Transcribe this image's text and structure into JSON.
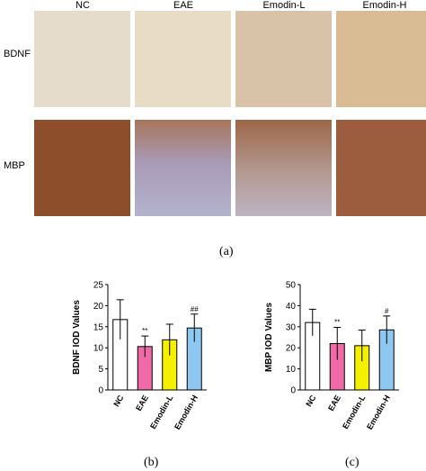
{
  "micrographs": {
    "columns": [
      "NC",
      "EAE",
      "Emodin-L",
      "Emodin-H"
    ],
    "rows": [
      "BDNF",
      "MBP"
    ]
  },
  "captions": {
    "a": "(a)",
    "b": "(b)",
    "c": "(c)"
  },
  "chart_data": [
    {
      "type": "bar",
      "ylabel": "BDNF IOD Values",
      "xlabel": "",
      "ylim": [
        0,
        25
      ],
      "yticks": [
        0,
        5,
        10,
        15,
        20,
        25
      ],
      "categories": [
        "NC",
        "EAE",
        "Emodin-L",
        "Emodin-H"
      ],
      "values": [
        16.7,
        10.3,
        11.9,
        14.7
      ],
      "errors": [
        4.7,
        2.5,
        3.7,
        3.3
      ],
      "annotations": [
        "",
        "**",
        "",
        "##"
      ],
      "colors": [
        "#ffffff",
        "#f06aa8",
        "#f5f000",
        "#8ec8f0"
      ]
    },
    {
      "type": "bar",
      "ylabel": "MBP IOD Values",
      "xlabel": "",
      "ylim": [
        0,
        50
      ],
      "yticks": [
        0,
        10,
        20,
        30,
        40,
        50
      ],
      "categories": [
        "NC",
        "EAE",
        "Emodin-L",
        "Emodin-H"
      ],
      "values": [
        32.0,
        22.0,
        21.0,
        28.5
      ],
      "errors": [
        6.3,
        7.7,
        7.4,
        6.6
      ],
      "annotations": [
        "",
        "**",
        "",
        "#"
      ],
      "colors": [
        "#ffffff",
        "#f06aa8",
        "#f5f000",
        "#8ec8f0"
      ]
    }
  ]
}
